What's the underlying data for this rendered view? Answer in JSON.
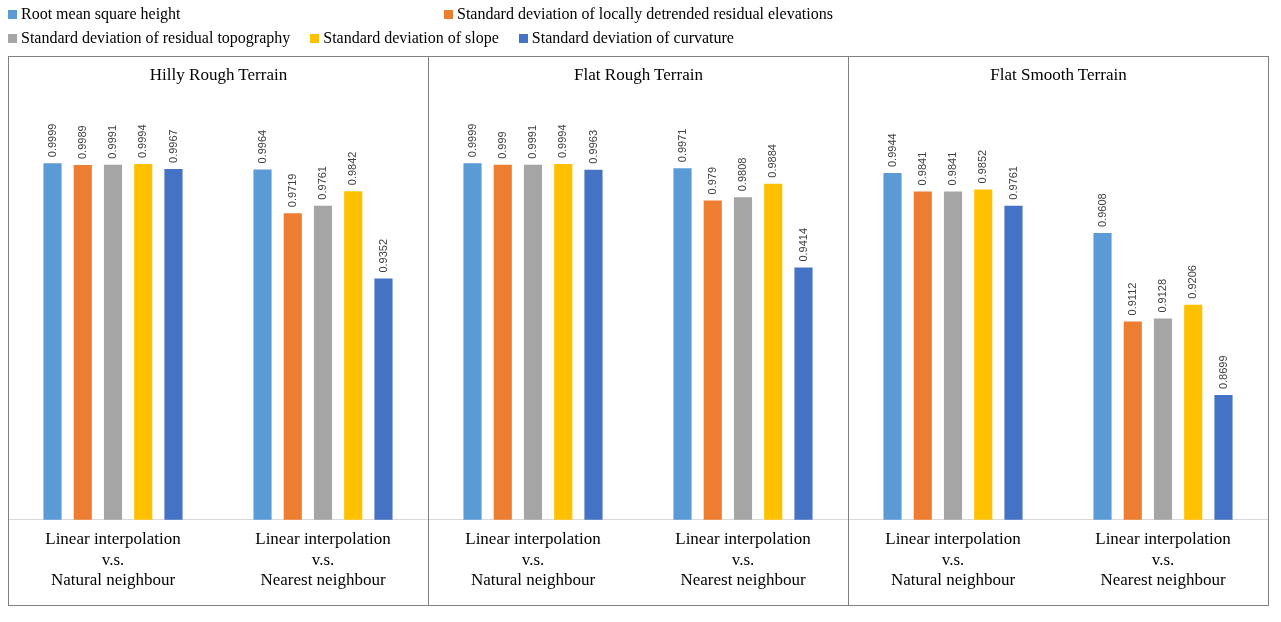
{
  "chart_data": [
    {
      "type": "bar",
      "title": "Hilly Rough Terrain",
      "categories": [
        "Linear interpolation\nv.s.\nNatural neighbour",
        "Linear interpolation\nv.s.\nNearest neighbour"
      ],
      "legend": "top",
      "data_labels": true,
      "tick_labels": "x",
      "ylim": [
        0.8,
        1.06
      ],
      "series": [
        {
          "name": "Root mean square height",
          "color": "#5b9bd5",
          "values": [
            0.9999,
            0.9964
          ]
        },
        {
          "name": "Standard deviation of locally detrended residual elevations",
          "color": "#ed7d31",
          "values": [
            0.9989,
            0.9719
          ]
        },
        {
          "name": "Standard deviation of residual topography",
          "color": "#a5a5a5",
          "values": [
            0.9991,
            0.9761
          ]
        },
        {
          "name": "Standard deviation of slope",
          "color": "#ffc000",
          "values": [
            0.9994,
            0.9842
          ]
        },
        {
          "name": "Standard deviation of curvature",
          "color": "#4472c4",
          "values": [
            0.9967,
            0.9352
          ]
        }
      ]
    },
    {
      "type": "bar",
      "title": "Flat Rough Terrain",
      "categories": [
        "Linear interpolation\nv.s.\nNatural neighbour",
        "Linear interpolation\nv.s.\nNearest neighbour"
      ],
      "data_labels": true,
      "tick_labels": "x",
      "ylim": [
        0.8,
        1.06
      ],
      "series": [
        {
          "color": "#5b9bd5",
          "values": [
            0.9999,
            0.9971
          ]
        },
        {
          "color": "#ed7d31",
          "values": [
            0.999,
            0.979
          ]
        },
        {
          "color": "#a5a5a5",
          "values": [
            0.9991,
            0.9808
          ]
        },
        {
          "color": "#ffc000",
          "values": [
            0.9994,
            0.9884
          ]
        },
        {
          "color": "#4472c4",
          "values": [
            0.9963,
            0.9414
          ]
        }
      ]
    },
    {
      "type": "bar",
      "title": "Flat Smooth Terrain",
      "categories": [
        "Linear interpolation\nv.s.\nNatural neighbour",
        "Linear interpolation\nv.s.\nNearest neighbour"
      ],
      "data_labels": true,
      "tick_labels": "x",
      "ylim": [
        0.8,
        1.06
      ],
      "series": [
        {
          "color": "#5b9bd5",
          "values": [
            0.9944,
            0.9608
          ]
        },
        {
          "color": "#ed7d31",
          "values": [
            0.9841,
            0.9112
          ]
        },
        {
          "color": "#a5a5a5",
          "values": [
            0.9841,
            0.9128
          ]
        },
        {
          "color": "#ffc000",
          "values": [
            0.9852,
            0.9206
          ]
        },
        {
          "color": "#4472c4",
          "values": [
            0.9761,
            0.8699
          ]
        }
      ]
    }
  ]
}
